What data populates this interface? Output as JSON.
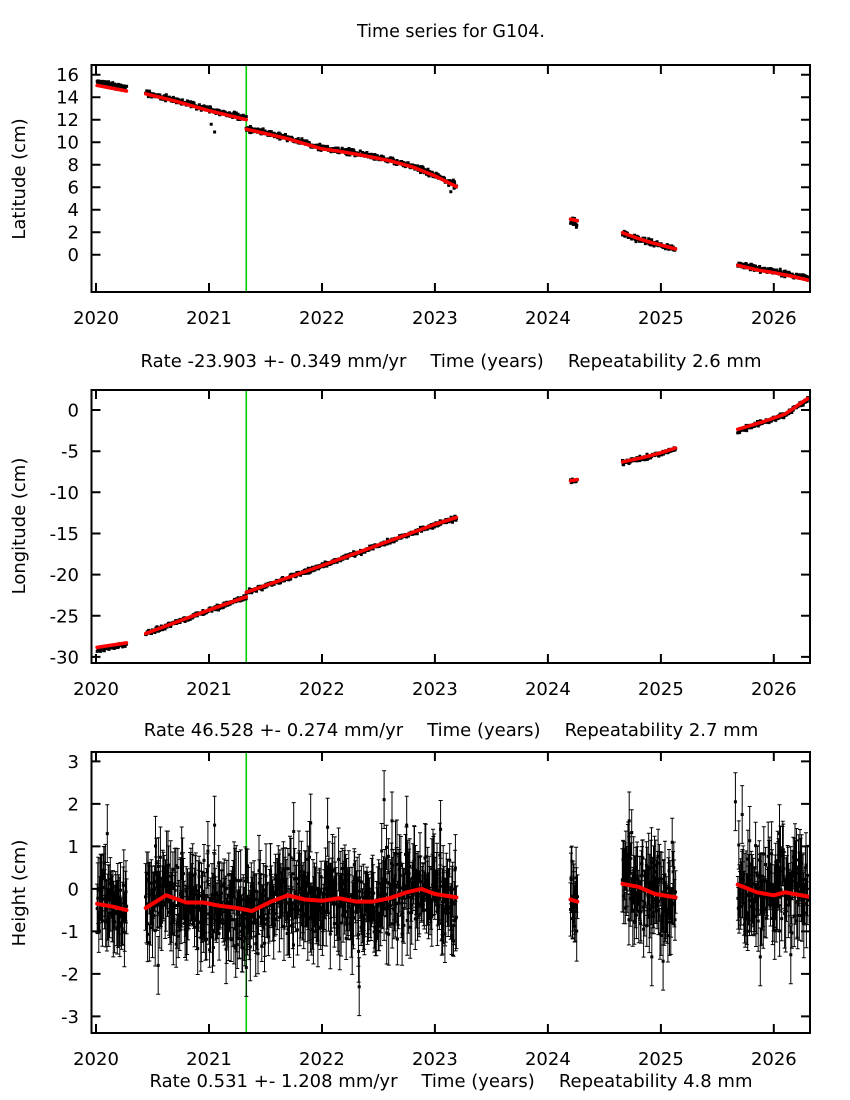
{
  "chart_data": {
    "type": "scatter",
    "figure": {
      "title": "Time series for G104."
    },
    "colors": {
      "background": "#ffffff",
      "data_points": "#000000",
      "trend_line": "#ff0000",
      "event_line": "#00cc00",
      "text": "#000000"
    },
    "axis": {
      "xlim": [
        2019.96,
        2026.32
      ],
      "event_line_x": 2021.33,
      "xticks": [
        {
          "v": 2020,
          "label": "2020"
        },
        {
          "v": 2021,
          "label": "2021"
        },
        {
          "v": 2022,
          "label": "2022"
        },
        {
          "v": 2023,
          "label": "2023"
        },
        {
          "v": 2024,
          "label": "2024"
        },
        {
          "v": 2025,
          "label": "2025"
        },
        {
          "v": 2026,
          "label": "2026"
        }
      ]
    },
    "panels": [
      {
        "id": "latitude",
        "ylabel": "Latitude (cm)",
        "ylim": [
          -3.32,
          16.86
        ],
        "yticks": [
          {
            "v": 0,
            "label": "0"
          },
          {
            "v": 2,
            "label": "2"
          },
          {
            "v": 4,
            "label": "4"
          },
          {
            "v": 6,
            "label": "6"
          },
          {
            "v": 8,
            "label": "8"
          },
          {
            "v": 10,
            "label": "10"
          },
          {
            "v": 12,
            "label": "12"
          },
          {
            "v": 14,
            "label": "14"
          },
          {
            "v": 16,
            "label": "16"
          }
        ],
        "footer": {
          "rate": "Rate -23.903 +- 0.349 mm/yr",
          "time": "Time (years)",
          "repeatability": "Repeatability 2.6 mm"
        },
        "rate_mm_yr": -23.903,
        "rate_err_mm_yr": 0.349,
        "repeatability_mm": 2.6,
        "seed": 11,
        "errorbars": false,
        "err_range": [
          0.04,
          0.1
        ],
        "point_size": 3,
        "trend_width": 3.5,
        "segments": [
          {
            "t0": 2020.01,
            "t1": 2020.27,
            "n": 55,
            "offset": 0.3,
            "noise": 0.13,
            "anchors": [
              [
                2020.01,
                15.05
              ],
              [
                2020.27,
                14.55
              ]
            ]
          },
          {
            "t0": 2020.44,
            "t1": 2021.33,
            "n": 200,
            "offset": 0.1,
            "noise": 0.13,
            "anchors": [
              [
                2020.44,
                14.3
              ],
              [
                2020.7,
                13.65
              ],
              [
                2021.0,
                12.8
              ],
              [
                2021.33,
                12.0
              ]
            ]
          },
          {
            "t0": 2021.33,
            "t1": 2023.19,
            "n": 430,
            "offset": 0.08,
            "noise": 0.13,
            "anchors": [
              [
                2021.33,
                11.15
              ],
              [
                2021.7,
                10.3
              ],
              [
                2022.0,
                9.4
              ],
              [
                2022.15,
                9.2
              ],
              [
                2022.35,
                8.85
              ],
              [
                2022.6,
                8.35
              ],
              [
                2022.8,
                7.8
              ],
              [
                2023.0,
                7.0
              ],
              [
                2023.19,
                6.05
              ]
            ]
          },
          {
            "t0": 2024.2,
            "t1": 2024.26,
            "n": 16,
            "offset": -0.25,
            "noise": 0.2,
            "anchors": [
              [
                2024.2,
                3.15
              ],
              [
                2024.26,
                3.03
              ]
            ]
          },
          {
            "t0": 2024.66,
            "t1": 2025.13,
            "n": 110,
            "offset": -0.05,
            "noise": 0.12,
            "anchors": [
              [
                2024.66,
                1.95
              ],
              [
                2024.78,
                1.5
              ],
              [
                2024.9,
                1.12
              ],
              [
                2025.0,
                0.85
              ],
              [
                2025.13,
                0.5
              ]
            ]
          },
          {
            "t0": 2025.68,
            "t1": 2026.3,
            "n": 150,
            "offset": 0.12,
            "noise": 0.12,
            "anchors": [
              [
                2025.68,
                -0.95
              ],
              [
                2025.85,
                -1.35
              ],
              [
                2026.0,
                -1.6
              ],
              [
                2026.15,
                -1.9
              ],
              [
                2026.3,
                -2.25
              ]
            ]
          }
        ],
        "outliers": [
          [
            2021.02,
            11.6
          ],
          [
            2021.05,
            10.9
          ],
          [
            2023.14,
            5.6
          ],
          [
            2023.17,
            5.9
          ]
        ]
      },
      {
        "id": "longitude",
        "ylabel": "Longitude (cm)",
        "ylim": [
          -30.74,
          2.43
        ],
        "yticks": [
          {
            "v": 0,
            "label": "0"
          },
          {
            "v": -5,
            "label": "-5"
          },
          {
            "v": -10,
            "label": "-10"
          },
          {
            "v": -15,
            "label": "-15"
          },
          {
            "v": -20,
            "label": "-20"
          },
          {
            "v": -25,
            "label": "-25"
          },
          {
            "v": -30,
            "label": "-30"
          }
        ],
        "footer": {
          "rate": "Rate 46.528 +- 0.274 mm/yr",
          "time": "Time (years)",
          "repeatability": "Repeatability 2.7 mm"
        },
        "rate_mm_yr": 46.528,
        "rate_err_mm_yr": 0.274,
        "repeatability_mm": 2.7,
        "seed": 22,
        "errorbars": false,
        "err_range": [
          0.05,
          0.12
        ],
        "point_size": 3,
        "trend_width": 3.5,
        "segments": [
          {
            "t0": 2020.01,
            "t1": 2020.27,
            "n": 55,
            "offset": -0.25,
            "noise": 0.14,
            "anchors": [
              [
                2020.01,
                -28.85
              ],
              [
                2020.27,
                -28.3
              ]
            ]
          },
          {
            "t0": 2020.44,
            "t1": 2021.33,
            "n": 200,
            "offset": -0.05,
            "noise": 0.14,
            "anchors": [
              [
                2020.44,
                -27.15
              ],
              [
                2021.0,
                -24.3
              ],
              [
                2021.33,
                -22.7
              ]
            ]
          },
          {
            "t0": 2021.33,
            "t1": 2023.19,
            "n": 430,
            "offset": -0.05,
            "noise": 0.14,
            "anchors": [
              [
                2021.33,
                -22.15
              ],
              [
                2022.0,
                -18.9
              ],
              [
                2022.5,
                -16.4
              ],
              [
                2023.0,
                -13.9
              ],
              [
                2023.19,
                -13.05
              ]
            ]
          },
          {
            "t0": 2024.2,
            "t1": 2024.26,
            "n": 16,
            "offset": -0.08,
            "noise": 0.15,
            "anchors": [
              [
                2024.2,
                -8.6
              ],
              [
                2024.26,
                -8.45
              ]
            ]
          },
          {
            "t0": 2024.66,
            "t1": 2025.13,
            "n": 110,
            "offset": -0.1,
            "noise": 0.14,
            "anchors": [
              [
                2024.66,
                -6.3
              ],
              [
                2024.85,
                -5.75
              ],
              [
                2025.0,
                -5.2
              ],
              [
                2025.13,
                -4.62
              ]
            ]
          },
          {
            "t0": 2025.68,
            "t1": 2026.3,
            "n": 150,
            "offset": -0.1,
            "noise": 0.14,
            "anchors": [
              [
                2025.68,
                -2.35
              ],
              [
                2025.9,
                -1.45
              ],
              [
                2026.1,
                -0.5
              ],
              [
                2026.3,
                1.4
              ]
            ]
          }
        ],
        "outliers": [
          [
            2024.67,
            -6.65
          ],
          [
            2025.69,
            -2.75
          ],
          [
            2022.28,
            -17.6
          ]
        ]
      },
      {
        "id": "height",
        "ylabel": "Height (cm)",
        "ylim": [
          -3.39,
          3.22
        ],
        "yticks": [
          {
            "v": 3,
            "label": "3"
          },
          {
            "v": 2,
            "label": "2"
          },
          {
            "v": 1,
            "label": "1"
          },
          {
            "v": 0,
            "label": "0"
          },
          {
            "v": -1,
            "label": "-1"
          },
          {
            "v": -2,
            "label": "-2"
          },
          {
            "v": -3,
            "label": "-3"
          }
        ],
        "footer": {
          "rate": "Rate 0.531 +- 1.208 mm/yr",
          "time": "Time (years)",
          "repeatability": "Repeatability 4.8 mm"
        },
        "rate_mm_yr": 0.531,
        "rate_err_mm_yr": 1.208,
        "repeatability_mm": 4.8,
        "seed": 33,
        "errorbars": true,
        "err_range": [
          0.35,
          0.85
        ],
        "point_size": 3,
        "trend_width": 4,
        "segments": [
          {
            "t0": 2020.01,
            "t1": 2020.27,
            "n": 55,
            "offset": 0,
            "noise": 0.45,
            "anchors": [
              [
                2020.01,
                -0.35
              ],
              [
                2020.15,
                -0.42
              ],
              [
                2020.27,
                -0.5
              ]
            ]
          },
          {
            "t0": 2020.44,
            "t1": 2023.19,
            "n": 640,
            "offset": 0,
            "noise": 0.48,
            "anchors": [
              [
                2020.44,
                -0.45
              ],
              [
                2020.62,
                -0.15
              ],
              [
                2020.8,
                -0.32
              ],
              [
                2020.95,
                -0.32
              ],
              [
                2021.1,
                -0.4
              ],
              [
                2021.25,
                -0.45
              ],
              [
                2021.38,
                -0.52
              ],
              [
                2021.55,
                -0.3
              ],
              [
                2021.7,
                -0.15
              ],
              [
                2021.85,
                -0.25
              ],
              [
                2022.0,
                -0.28
              ],
              [
                2022.15,
                -0.22
              ],
              [
                2022.3,
                -0.3
              ],
              [
                2022.45,
                -0.3
              ],
              [
                2022.6,
                -0.22
              ],
              [
                2022.75,
                -0.08
              ],
              [
                2022.88,
                0.0
              ],
              [
                2023.0,
                -0.12
              ],
              [
                2023.19,
                -0.2
              ]
            ]
          },
          {
            "t0": 2024.2,
            "t1": 2024.26,
            "n": 16,
            "offset": 0,
            "noise": 0.4,
            "anchors": [
              [
                2024.2,
                -0.25
              ],
              [
                2024.26,
                -0.3
              ]
            ]
          },
          {
            "t0": 2024.66,
            "t1": 2025.13,
            "n": 110,
            "offset": 0,
            "noise": 0.5,
            "anchors": [
              [
                2024.66,
                0.12
              ],
              [
                2024.8,
                0.05
              ],
              [
                2024.95,
                -0.12
              ],
              [
                2025.13,
                -0.2
              ]
            ]
          },
          {
            "t0": 2025.68,
            "t1": 2026.3,
            "n": 150,
            "offset": 0,
            "noise": 0.5,
            "anchors": [
              [
                2025.68,
                0.1
              ],
              [
                2025.85,
                -0.08
              ],
              [
                2026.0,
                -0.15
              ],
              [
                2026.1,
                -0.08
              ],
              [
                2026.3,
                -0.18
              ]
            ]
          }
        ],
        "outliers": [
          [
            2020.1,
            1.3
          ],
          [
            2020.55,
            -1.8
          ],
          [
            2021.05,
            1.5
          ],
          [
            2021.33,
            -1.85
          ],
          [
            2021.75,
            1.35
          ],
          [
            2021.9,
            1.55
          ],
          [
            2022.05,
            1.45
          ],
          [
            2022.33,
            -2.3
          ],
          [
            2022.55,
            2.1
          ],
          [
            2022.62,
            1.6
          ],
          [
            2022.75,
            1.5
          ],
          [
            2023.05,
            1.4
          ],
          [
            2024.72,
            1.6
          ],
          [
            2024.92,
            -1.6
          ],
          [
            2025.02,
            -1.7
          ],
          [
            2025.66,
            2.05
          ],
          [
            2025.72,
            1.75
          ],
          [
            2025.88,
            -1.6
          ],
          [
            2026.05,
            1.3
          ],
          [
            2026.15,
            -1.55
          ]
        ]
      }
    ]
  }
}
